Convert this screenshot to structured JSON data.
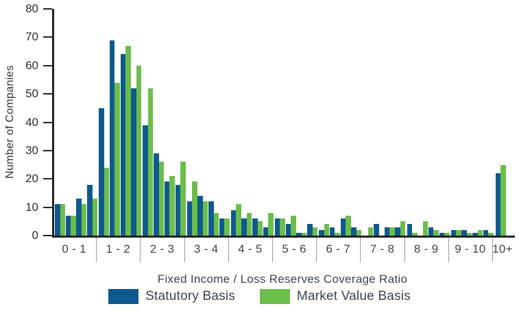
{
  "y_axis_label": "Number of Companies",
  "x_axis_label": "Fixed Income / Loss Reserves Coverage Ratio",
  "legend": {
    "statutory": "Statutory Basis",
    "market": "Market Value Basis"
  },
  "colors": {
    "statutory_blue": "#0E5A8D",
    "market_green": "#6CBE4B",
    "axis": "#222222",
    "divider": "#9A9A9A",
    "text": "#3A4250"
  },
  "chart_data": {
    "type": "bar",
    "title": "",
    "xlabel": "Fixed Income / Loss Reserves Coverage Ratio",
    "ylabel": "Number of Companies",
    "ylim": [
      0,
      80
    ],
    "yticks": [
      0,
      10,
      20,
      30,
      40,
      50,
      60,
      70,
      80
    ],
    "grid": false,
    "legend_position": "bottom",
    "categories": [
      "0 - 1",
      "1 - 2",
      "2 - 3",
      "3 - 4",
      "4 - 5",
      "5 - 6",
      "6 - 7",
      "7 - 8",
      "8 - 9",
      "9 - 10",
      "10+"
    ],
    "sub_bins_per_category": [
      4,
      4,
      4,
      4,
      4,
      4,
      4,
      4,
      4,
      4,
      1
    ],
    "series": [
      {
        "name": "Statutory Basis",
        "color": "#0E5A8D",
        "values": [
          [
            11,
            7,
            13,
            18
          ],
          [
            45,
            69,
            64,
            52
          ],
          [
            39,
            29,
            19,
            18
          ],
          [
            12,
            14,
            12,
            6
          ],
          [
            9,
            6,
            6,
            3
          ],
          [
            6,
            4,
            1,
            4
          ],
          [
            2,
            3,
            6,
            3
          ],
          [
            0,
            4,
            3,
            3
          ],
          [
            4,
            0,
            3,
            1
          ],
          [
            2,
            2,
            1,
            2
          ],
          [
            22
          ]
        ]
      },
      {
        "name": "Market Value Basis",
        "color": "#6CBE4B",
        "values": [
          [
            11,
            7,
            11,
            13
          ],
          [
            24,
            54,
            67,
            60
          ],
          [
            52,
            26,
            21,
            26
          ],
          [
            19,
            12,
            8,
            6
          ],
          [
            11,
            8,
            5,
            8
          ],
          [
            6,
            7,
            1,
            3
          ],
          [
            4,
            1,
            7,
            2
          ],
          [
            3,
            0,
            3,
            5
          ],
          [
            1,
            5,
            2,
            1
          ],
          [
            2,
            1,
            2,
            1
          ],
          [
            25
          ]
        ]
      }
    ]
  }
}
